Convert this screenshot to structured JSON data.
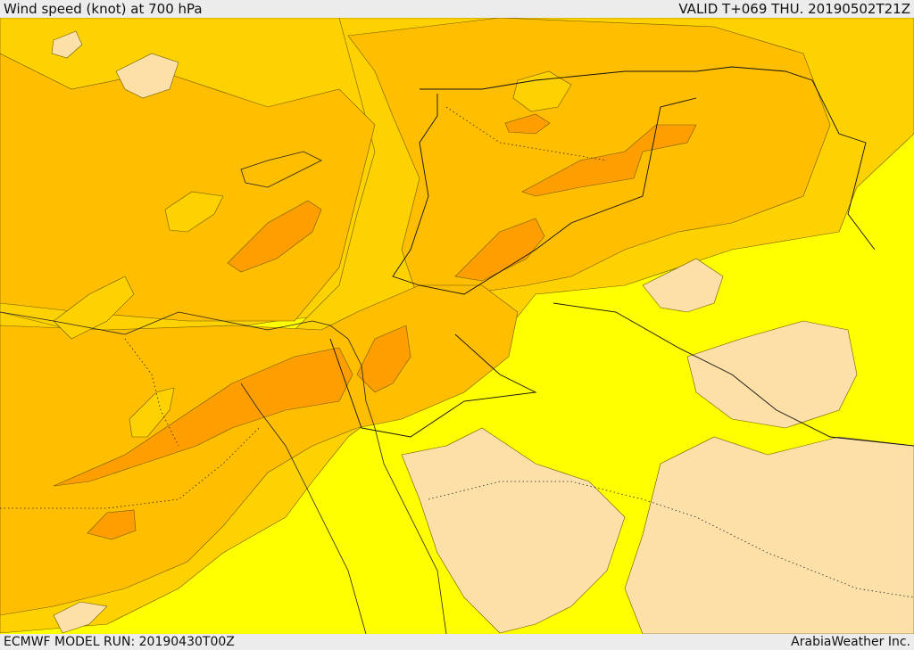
{
  "header": {
    "title": "Wind speed (knot) at 700 hPa",
    "valid": "VALID T+069 THU. 20190502T21Z"
  },
  "footer": {
    "model_run": "ECMWF MODEL RUN: 20190430T00Z",
    "provider": "ArabiaWeather Inc."
  },
  "colors": {
    "background": "#ececec",
    "band_low": "#fde0a8",
    "band_mid_low": "#ffff00",
    "band_mid": "#fed200",
    "band_mid_high": "#ffbe00",
    "band_high": "#ff9e00",
    "band_top": "#ff8c0a"
  }
}
